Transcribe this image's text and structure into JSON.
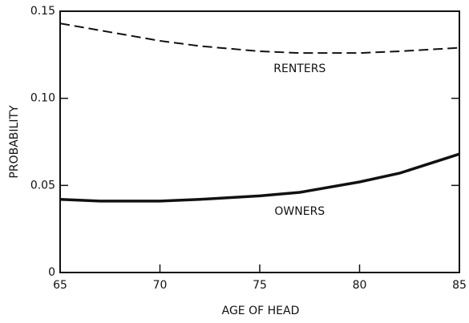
{
  "chart_data": {
    "type": "line",
    "xlabel": "AGE OF HEAD",
    "ylabel": "PROBABILITY",
    "x": [
      65,
      67,
      70,
      72,
      75,
      77,
      80,
      82,
      85
    ],
    "series": [
      {
        "name": "RENTERS",
        "color": "#111111",
        "dash": true,
        "values": [
          0.143,
          0.139,
          0.133,
          0.13,
          0.127,
          0.126,
          0.126,
          0.127,
          0.129
        ]
      },
      {
        "name": "OWNERS",
        "color": "#111111",
        "dash": false,
        "values": [
          0.042,
          0.041,
          0.041,
          0.042,
          0.044,
          0.046,
          0.052,
          0.057,
          0.068
        ]
      }
    ],
    "xlim": [
      65,
      85
    ],
    "xticks": [
      65,
      70,
      75,
      80,
      85
    ],
    "ylim": [
      0,
      0.15
    ],
    "yticks": [
      0,
      0.05,
      {
        "value": 0.1,
        "label": "0.10"
      },
      0.15
    ],
    "grid": false
  }
}
